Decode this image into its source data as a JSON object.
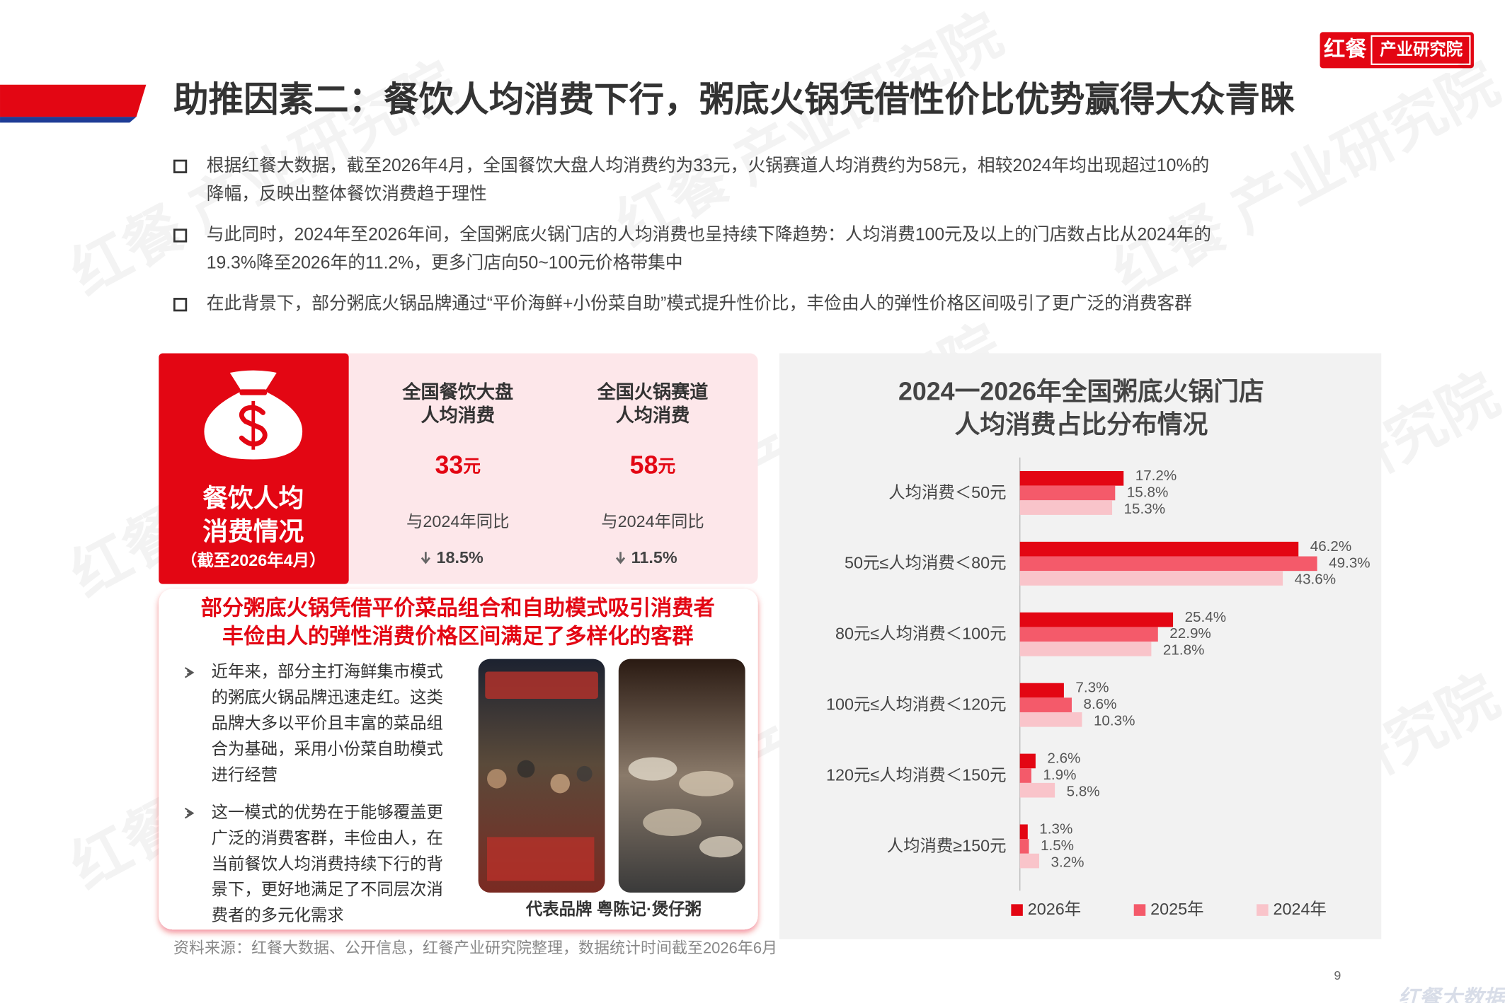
{
  "header": {
    "logo_brand": "红餐",
    "logo_org": "产业研究院",
    "title": "助推因素二：餐饮人均消费下行，粥底火锅凭借性价比优势赢得大众青睐"
  },
  "bullets": [
    [
      "根据红餐大数据，截至2026年4月，全国餐饮大盘人均消费约为33元，火锅赛道人均消费约为58元，相较2024年均出现超过10%的",
      "降幅，反映出整体餐饮消费趋于理性"
    ],
    [
      "与此同时，2024年至2026年间，全国粥底火锅门店的人均消费也呈持续下降趋势：人均消费100元及以上的门店数占比从2024年的",
      "19.3%降至2026年的11.2%，更多门店向50~100元价格带集中"
    ],
    [
      "在此背景下，部分粥底火锅品牌通过“平价海鲜+小份菜自助”模式提升性价比，丰俭由人的弹性价格区间吸引了更广泛的消费客群"
    ]
  ],
  "summary": {
    "title": [
      "餐饮人均",
      "消费情况"
    ],
    "note": "（截至2026年4月）",
    "columns": [
      {
        "header": [
          "全国餐饮大盘",
          "人均消费"
        ],
        "value": 33,
        "unit": "元",
        "compare": "与2024年同比",
        "change": "18.5%"
      },
      {
        "header": [
          "全国火锅赛道",
          "人均消费"
        ],
        "value": 58,
        "unit": "元",
        "compare": "与2024年同比",
        "change": "11.5%"
      }
    ]
  },
  "feature": {
    "heading": [
      "部分粥底火锅凭借平价菜品组合和自助模式吸引消费者",
      "丰俭由人的弹性消费价格区间满足了多样化的客群"
    ],
    "points": [
      [
        "近年来，部分主打海鲜集市模式",
        "的粥底火锅品牌迅速走红。这类",
        "品牌大多以平价且丰富的菜品组",
        "合为基础，采用小份菜自助模式",
        "进行经营"
      ],
      [
        "这一模式的优势在于能够覆盖更",
        "广泛的消费客群，丰俭由人，在",
        "当前餐饮人均消费持续下行的背",
        "景下，更好地满足了不同层次消",
        "费者的多元化需求"
      ]
    ],
    "caption": "代表品牌 粤陈记·煲仔粥"
  },
  "source": "资料来源：红餐大数据、公开信息，红餐产业研究院整理，数据统计时间截至2026年6月",
  "page_number": "9",
  "footer_logo": "红餐大数据",
  "watermark": "红餐 产业研究院",
  "chart_data": {
    "type": "hbar",
    "title": [
      "2024一2026年全国粥底火锅门店",
      "人均消费占比分布情况"
    ],
    "categories": [
      "人均消费＜50元",
      "50元≤人均消费＜80元",
      "80元≤人均消费＜100元",
      "100元≤人均消费＜120元",
      "120元≤人均消费＜150元",
      "人均消费≥150元"
    ],
    "series": [
      {
        "name": "2026年",
        "color": "#e30613",
        "values": [
          17.2,
          46.2,
          25.4,
          7.3,
          2.6,
          1.3
        ],
        "value_labels": [
          "17.2%",
          "46.2%",
          "25.4%",
          "7.3%",
          "2.6%",
          "1.3%"
        ]
      },
      {
        "name": "2025年",
        "color": "#f45a6a",
        "values": [
          15.8,
          49.3,
          22.9,
          8.6,
          1.9,
          1.5
        ],
        "value_labels": [
          "15.8%",
          "49.3%",
          "22.9%",
          "8.6%",
          "1.9%",
          "1.5%"
        ]
      },
      {
        "name": "2024年",
        "color": "#f9c4ca",
        "values": [
          15.3,
          43.6,
          21.8,
          10.3,
          5.8,
          3.2
        ],
        "value_labels": [
          "15.3%",
          "43.6%",
          "21.8%",
          "10.3%",
          "5.8%",
          "3.2%"
        ]
      }
    ],
    "legend": "bottom"
  }
}
